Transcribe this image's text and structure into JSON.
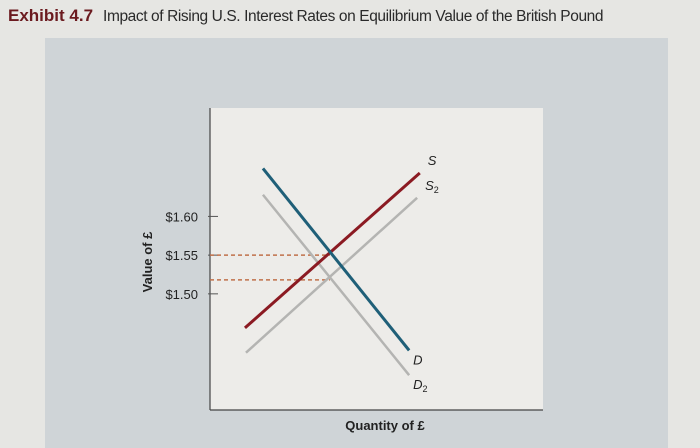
{
  "header": {
    "exhibit": "Exhibit 4.7",
    "title": "Impact of Rising U.S. Interest Rates on Equilibrium Value of the British Pound"
  },
  "chart_data": {
    "type": "line",
    "title": "Impact of Rising U.S. Interest Rates on Equilibrium Value of the British Pound",
    "xlabel": "Quantity of £",
    "ylabel": "Value of £",
    "xlim": [
      0,
      100
    ],
    "ylim": [
      1.35,
      1.74
    ],
    "yticks": [
      {
        "value": 1.6,
        "label": "$1.60"
      },
      {
        "value": 1.55,
        "label": "$1.55"
      },
      {
        "value": 1.5,
        "label": "$1.50"
      }
    ],
    "grid": false,
    "series": [
      {
        "name": "S",
        "color": "#8b1a22",
        "points": [
          [
            10.5,
            1.456
          ],
          [
            63,
            1.656
          ]
        ]
      },
      {
        "name": "S2",
        "color": "#b4b4b2",
        "points": [
          [
            10.8,
            1.424
          ],
          [
            62.2,
            1.624
          ]
        ]
      },
      {
        "name": "D",
        "color": "#1f5f78",
        "points": [
          [
            15.9,
            1.662
          ],
          [
            59.8,
            1.427
          ]
        ]
      },
      {
        "name": "D2",
        "color": "#b4b4b2",
        "points": [
          [
            15.9,
            1.628
          ],
          [
            59.8,
            1.395
          ]
        ]
      }
    ],
    "equilibria": [
      {
        "x": 36,
        "y": 1.55,
        "color": "#c0704a"
      },
      {
        "x": 36,
        "y": 1.518,
        "color": "#c0704a"
      }
    ],
    "label_colors": {
      "text": "#222222",
      "plot_bg": "#edece9"
    }
  }
}
